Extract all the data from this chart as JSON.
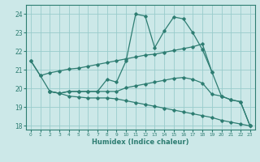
{
  "xlabel": "Humidex (Indice chaleur)",
  "bg_color": "#cce8e8",
  "grid_color": "#99cccc",
  "line_color": "#2e7d72",
  "ylim": [
    17.8,
    24.5
  ],
  "xlim": [
    -0.5,
    23.5
  ],
  "yticks": [
    18,
    19,
    20,
    21,
    22,
    23,
    24
  ],
  "xticks": [
    0,
    1,
    2,
    3,
    4,
    5,
    6,
    7,
    8,
    9,
    10,
    11,
    12,
    13,
    14,
    15,
    16,
    17,
    18,
    19,
    20,
    21,
    22,
    23
  ],
  "line1_x": [
    0,
    1,
    2,
    3,
    4,
    5,
    6,
    7,
    8,
    9,
    10,
    11,
    12,
    13,
    14,
    15,
    16,
    17,
    18,
    19
  ],
  "line1_y": [
    21.5,
    20.7,
    20.85,
    20.95,
    21.05,
    21.1,
    21.2,
    21.3,
    21.4,
    21.5,
    21.6,
    21.7,
    21.8,
    21.85,
    21.95,
    22.05,
    22.15,
    22.25,
    22.4,
    20.9
  ],
  "line2_x": [
    0,
    1,
    2,
    3,
    4,
    5,
    6,
    7,
    8,
    9,
    10,
    11,
    12,
    13,
    14,
    15,
    16,
    17,
    18,
    19,
    20,
    21,
    22,
    23
  ],
  "line2_y": [
    21.5,
    20.7,
    19.85,
    19.75,
    19.85,
    19.85,
    19.85,
    19.85,
    20.5,
    20.35,
    21.5,
    24.0,
    23.9,
    22.2,
    23.1,
    23.85,
    23.75,
    23.0,
    22.1,
    20.9,
    19.6,
    19.4,
    19.3,
    18.0
  ],
  "line3_x": [
    2,
    3,
    4,
    5,
    6,
    7,
    8,
    9,
    10,
    11,
    12,
    13,
    14,
    15,
    16,
    17,
    18,
    19,
    20,
    21,
    22,
    23
  ],
  "line3_y": [
    19.85,
    19.75,
    19.85,
    19.85,
    19.85,
    19.85,
    19.85,
    19.85,
    20.05,
    20.15,
    20.25,
    20.35,
    20.45,
    20.55,
    20.6,
    20.5,
    20.3,
    19.7,
    19.6,
    19.4,
    19.3,
    18.0
  ],
  "line4_x": [
    2,
    3,
    4,
    5,
    6,
    7,
    8,
    9,
    10,
    11,
    12,
    13,
    14,
    15,
    16,
    17,
    18,
    19,
    20,
    21,
    22,
    23
  ],
  "line4_y": [
    19.85,
    19.75,
    19.6,
    19.55,
    19.5,
    19.5,
    19.5,
    19.45,
    19.35,
    19.25,
    19.15,
    19.05,
    18.95,
    18.85,
    18.75,
    18.65,
    18.55,
    18.45,
    18.3,
    18.2,
    18.1,
    18.0
  ]
}
